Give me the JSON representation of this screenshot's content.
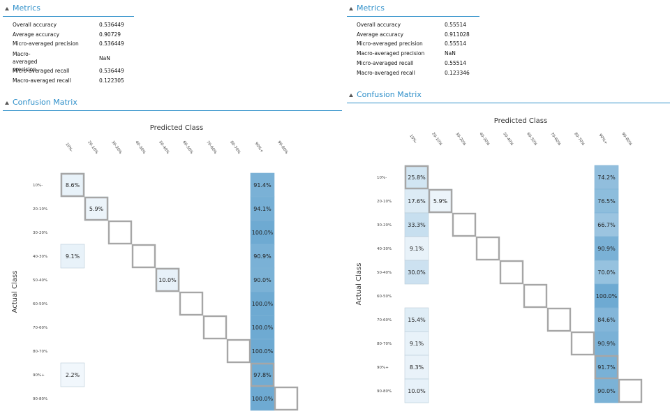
{
  "panels": [
    {
      "metrics_title": "Metrics",
      "metrics": [
        {
          "label": "Overall accuracy",
          "value": "0.536449"
        },
        {
          "label": "Average accuracy",
          "value": "0.90729"
        },
        {
          "label": "Micro-averaged precision",
          "value": "0.536449"
        },
        {
          "label": "Macro-averaged\nprecision",
          "value": "NaN"
        },
        {
          "label": "Micro-averaged recall",
          "value": "0.536449"
        },
        {
          "label": "Macro-averaged recall",
          "value": "0.122305"
        }
      ],
      "cm_title": "Confusion Matrix",
      "predicted_label": "Predicted Class",
      "actual_label": "Actual Class",
      "col_labels": [
        "10%-",
        "20-10%",
        "30-20%",
        "40-30%",
        "50-40%",
        "60-50%",
        "70-60%",
        "80-70%",
        "90%+",
        "90-80%"
      ],
      "row_labels": [
        "10%-",
        "20-10%",
        "30-20%",
        "40-30%",
        "50-40%",
        "60-50%",
        "70-60%",
        "80-70%",
        "90%+",
        "90-80%"
      ],
      "cells": [
        {
          "row": 0,
          "col": 0,
          "text": "8.6%",
          "value": 8.6
        },
        {
          "row": 0,
          "col": 8,
          "text": "91.4%",
          "value": 91.4
        },
        {
          "row": 1,
          "col": 1,
          "text": "5.9%",
          "value": 5.9
        },
        {
          "row": 1,
          "col": 8,
          "text": "94.1%",
          "value": 94.1
        },
        {
          "row": 2,
          "col": 8,
          "text": "100.0%",
          "value": 100.0
        },
        {
          "row": 3,
          "col": 0,
          "text": "9.1%",
          "value": 9.1
        },
        {
          "row": 3,
          "col": 8,
          "text": "90.9%",
          "value": 90.9
        },
        {
          "row": 4,
          "col": 4,
          "text": "10.0%",
          "value": 10.0
        },
        {
          "row": 4,
          "col": 8,
          "text": "90.0%",
          "value": 90.0
        },
        {
          "row": 5,
          "col": 8,
          "text": "100.0%",
          "value": 100.0
        },
        {
          "row": 6,
          "col": 8,
          "text": "100.0%",
          "value": 100.0
        },
        {
          "row": 7,
          "col": 8,
          "text": "100.0%",
          "value": 100.0
        },
        {
          "row": 8,
          "col": 0,
          "text": "2.2%",
          "value": 2.2
        },
        {
          "row": 8,
          "col": 8,
          "text": "97.8%",
          "value": 97.8
        },
        {
          "row": 9,
          "col": 8,
          "text": "100.0%",
          "value": 100.0
        }
      ]
    },
    {
      "metrics_title": "Metrics",
      "metrics": [
        {
          "label": "Overall accuracy",
          "value": "0.55514"
        },
        {
          "label": "Average accuracy",
          "value": "0.911028"
        },
        {
          "label": "Micro-averaged precision",
          "value": "0.55514"
        },
        {
          "label": "Macro-averaged precision",
          "value": "NaN"
        },
        {
          "label": "Micro-averaged recall",
          "value": "0.55514"
        },
        {
          "label": "Macro-averaged recall",
          "value": "0.123346"
        }
      ],
      "cm_title": "Confusion Matrix",
      "predicted_label": "Predicted Class",
      "actual_label": "Actual Class",
      "col_labels": [
        "10%-",
        "20-10%",
        "30-20%",
        "40-30%",
        "50-40%",
        "60-50%",
        "70-60%",
        "80-70%",
        "90%+",
        "90-80%"
      ],
      "row_labels": [
        "10%-",
        "20-10%",
        "30-20%",
        "40-30%",
        "50-40%",
        "60-50%",
        "70-60%",
        "80-70%",
        "90%+",
        "90-80%"
      ],
      "cells": [
        {
          "row": 0,
          "col": 0,
          "text": "25.8%",
          "value": 25.8
        },
        {
          "row": 0,
          "col": 8,
          "text": "74.2%",
          "value": 74.2
        },
        {
          "row": 1,
          "col": 0,
          "text": "17.6%",
          "value": 17.6
        },
        {
          "row": 1,
          "col": 1,
          "text": "5.9%",
          "value": 5.9
        },
        {
          "row": 1,
          "col": 8,
          "text": "76.5%",
          "value": 76.5
        },
        {
          "row": 2,
          "col": 0,
          "text": "33.3%",
          "value": 33.3
        },
        {
          "row": 2,
          "col": 8,
          "text": "66.7%",
          "value": 66.7
        },
        {
          "row": 3,
          "col": 0,
          "text": "9.1%",
          "value": 9.1
        },
        {
          "row": 3,
          "col": 8,
          "text": "90.9%",
          "value": 90.9
        },
        {
          "row": 4,
          "col": 0,
          "text": "30.0%",
          "value": 30.0
        },
        {
          "row": 4,
          "col": 8,
          "text": "70.0%",
          "value": 70.0
        },
        {
          "row": 5,
          "col": 8,
          "text": "100.0%",
          "value": 100.0
        },
        {
          "row": 6,
          "col": 0,
          "text": "15.4%",
          "value": 15.4
        },
        {
          "row": 6,
          "col": 8,
          "text": "84.6%",
          "value": 84.6
        },
        {
          "row": 7,
          "col": 0,
          "text": "9.1%",
          "value": 9.1
        },
        {
          "row": 7,
          "col": 8,
          "text": "90.9%",
          "value": 90.9
        },
        {
          "row": 8,
          "col": 0,
          "text": "8.3%",
          "value": 8.3
        },
        {
          "row": 8,
          "col": 8,
          "text": "91.7%",
          "value": 91.7
        },
        {
          "row": 9,
          "col": 0,
          "text": "10.0%",
          "value": 10.0
        },
        {
          "row": 9,
          "col": 8,
          "text": "90.0%",
          "value": 90.0
        }
      ]
    }
  ]
}
